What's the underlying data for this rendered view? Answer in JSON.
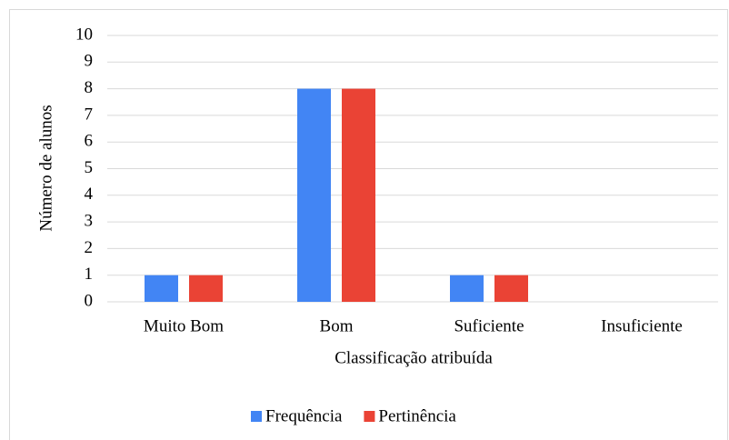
{
  "chart_data": {
    "type": "bar",
    "categories": [
      "Muito Bom",
      "Bom",
      "Suficiente",
      "Insuficiente"
    ],
    "series": [
      {
        "name": "Frequência",
        "color": "#4285f4",
        "values": [
          1,
          8,
          1,
          0
        ]
      },
      {
        "name": "Pertinência",
        "color": "#ea4335",
        "values": [
          1,
          8,
          1,
          0
        ]
      }
    ],
    "ylim": [
      0,
      10
    ],
    "yticks": [
      0,
      1,
      2,
      3,
      4,
      5,
      6,
      7,
      8,
      9,
      10
    ],
    "grid": true,
    "x_label": "Classificação atribuída",
    "y_label": "Número de alunos",
    "legend": "bottom"
  }
}
